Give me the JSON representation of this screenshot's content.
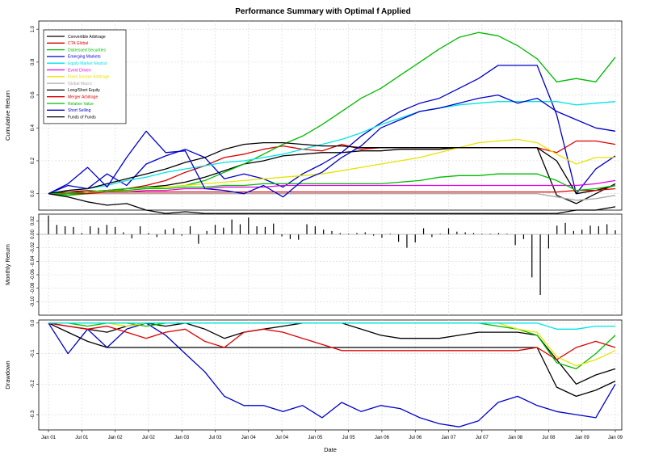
{
  "chart_data": {
    "type": "line",
    "title": "Performance Summary with Optimal f Applied",
    "xlabel": "Date",
    "x_ticks": [
      "Jan 01",
      "Jul 01",
      "Jan 02",
      "Jul 02",
      "Jan 03",
      "Jul 03",
      "Jan 04",
      "Jul 04",
      "Jan 05",
      "Jul 05",
      "Jan 06",
      "Jul 06",
      "Jan 07",
      "Jul 07",
      "Jan 08",
      "Jul 08",
      "Jan 09",
      "Jan 09"
    ],
    "legend_position": "top-left",
    "grid": true,
    "colors": {
      "Convertible Arbitrage": "#000000",
      "CTA Global": "#dd0000",
      "Distressed Securities": "#00bb00",
      "Emerging Markets": "#0000cc",
      "Equity Market Neutral": "#00e5e5",
      "Event Driven": "#e600e6",
      "Fixed Income Arbitrage": "#e5e500",
      "Global Macro": "#aaaaaa",
      "Long/Short Equity": "#000000",
      "Merger Arbitrage": "#dd0000",
      "Relative Value": "#00bb00",
      "Short Selling": "#0000cc",
      "Funds of Funds": "#000000"
    },
    "panels": [
      {
        "name": "cumulative",
        "ylabel": "Cumulative Return",
        "ylim": [
          -0.1,
          1.05
        ],
        "yticks": [
          "0.0",
          "0.2",
          "0.4",
          "0.6",
          "0.8",
          "1.0"
        ],
        "series": [
          {
            "name": "Convertible Arbitrage",
            "values": [
              0.0,
              0.01,
              0.01,
              0.02,
              0.03,
              0.04,
              0.05,
              0.07,
              0.1,
              0.14,
              0.18,
              0.2,
              0.23,
              0.24,
              0.25,
              0.25,
              0.26,
              0.26,
              0.27,
              0.27,
              0.27,
              0.28,
              0.28,
              0.28,
              0.28,
              0.28,
              -0.01,
              -0.06,
              0.0,
              0.06
            ]
          },
          {
            "name": "CTA Global",
            "values": [
              0.0,
              0.01,
              0.02,
              0.01,
              0.03,
              0.05,
              0.08,
              0.13,
              0.17,
              0.22,
              0.24,
              0.27,
              0.29,
              0.27,
              0.26,
              0.3,
              0.27,
              0.28,
              0.28,
              0.28,
              0.28,
              0.28,
              0.28,
              0.28,
              0.28,
              0.28,
              0.25,
              0.32,
              0.32,
              0.3
            ]
          },
          {
            "name": "Distressed Securities",
            "values": [
              0.0,
              -0.01,
              0.0,
              0.02,
              0.03,
              0.04,
              0.04,
              0.05,
              0.08,
              0.13,
              0.18,
              0.24,
              0.3,
              0.35,
              0.42,
              0.5,
              0.58,
              0.64,
              0.72,
              0.8,
              0.88,
              0.95,
              0.98,
              0.96,
              0.9,
              0.82,
              0.68,
              0.7,
              0.68,
              0.83
            ]
          },
          {
            "name": "Emerging Markets",
            "values": [
              0.0,
              0.05,
              0.03,
              0.12,
              0.05,
              0.18,
              0.23,
              0.27,
              0.22,
              0.09,
              0.12,
              0.09,
              0.04,
              0.12,
              0.18,
              0.25,
              0.35,
              0.43,
              0.5,
              0.55,
              0.58,
              0.64,
              0.7,
              0.78,
              0.78,
              0.78,
              0.48,
              0.0,
              0.15,
              0.23
            ]
          },
          {
            "name": "Equity Market Neutral",
            "values": [
              0.0,
              0.02,
              0.03,
              0.05,
              0.08,
              0.1,
              0.13,
              0.15,
              0.17,
              0.19,
              0.2,
              0.22,
              0.24,
              0.27,
              0.3,
              0.33,
              0.37,
              0.42,
              0.46,
              0.5,
              0.52,
              0.54,
              0.55,
              0.56,
              0.56,
              0.56,
              0.56,
              0.54,
              0.55,
              0.56
            ]
          },
          {
            "name": "Event Driven",
            "values": [
              0.0,
              0.0,
              0.01,
              0.01,
              0.01,
              0.02,
              0.02,
              0.03,
              0.03,
              0.04,
              0.04,
              0.04,
              0.05,
              0.05,
              0.05,
              0.05,
              0.05,
              0.05,
              0.05,
              0.05,
              0.05,
              0.05,
              0.05,
              0.05,
              0.05,
              0.05,
              0.05,
              0.05,
              0.06,
              0.08
            ]
          },
          {
            "name": "Fixed Income Arbitrage",
            "values": [
              0.0,
              0.0,
              0.01,
              0.01,
              0.02,
              0.03,
              0.04,
              0.05,
              0.06,
              0.07,
              0.08,
              0.09,
              0.1,
              0.11,
              0.12,
              0.14,
              0.16,
              0.18,
              0.2,
              0.22,
              0.25,
              0.28,
              0.31,
              0.32,
              0.33,
              0.31,
              0.24,
              0.18,
              0.22,
              0.22
            ]
          },
          {
            "name": "Global Macro",
            "values": [
              0.0,
              0.0,
              0.0,
              0.0,
              0.0,
              0.0,
              0.0,
              0.0,
              0.0,
              0.0,
              0.0,
              0.0,
              0.0,
              0.0,
              0.0,
              0.0,
              0.0,
              0.0,
              0.0,
              0.0,
              0.0,
              0.0,
              0.0,
              0.0,
              0.0,
              0.0,
              -0.02,
              -0.04,
              -0.03,
              -0.01
            ]
          },
          {
            "name": "Long/Short Equity",
            "values": [
              0.0,
              0.02,
              0.03,
              0.06,
              0.09,
              0.12,
              0.15,
              0.19,
              0.22,
              0.27,
              0.3,
              0.31,
              0.31,
              0.3,
              0.29,
              0.29,
              0.28,
              0.28,
              0.28,
              0.28,
              0.28,
              0.28,
              0.28,
              0.28,
              0.28,
              0.28,
              0.2,
              0.0,
              0.02,
              0.05
            ]
          },
          {
            "name": "Merger Arbitrage",
            "values": [
              0.0,
              0.0,
              0.0,
              0.01,
              0.01,
              0.01,
              0.01,
              0.01,
              0.01,
              0.01,
              0.01,
              0.01,
              0.01,
              0.01,
              0.01,
              0.01,
              0.01,
              0.01,
              0.01,
              0.01,
              0.01,
              0.01,
              0.01,
              0.01,
              0.01,
              0.01,
              0.01,
              0.02,
              0.02,
              0.03
            ]
          },
          {
            "name": "Relative Value",
            "values": [
              0.0,
              0.0,
              0.01,
              0.02,
              0.02,
              0.03,
              0.03,
              0.04,
              0.04,
              0.05,
              0.05,
              0.06,
              0.06,
              0.06,
              0.06,
              0.06,
              0.06,
              0.06,
              0.07,
              0.08,
              0.1,
              0.11,
              0.11,
              0.12,
              0.12,
              0.12,
              0.08,
              0.02,
              0.03,
              0.05
            ]
          },
          {
            "name": "Short Selling",
            "values": [
              0.0,
              0.06,
              0.16,
              0.04,
              0.22,
              0.38,
              0.25,
              0.26,
              0.03,
              0.02,
              0.0,
              0.05,
              -0.02,
              0.08,
              0.13,
              0.22,
              0.29,
              0.4,
              0.45,
              0.5,
              0.52,
              0.55,
              0.58,
              0.6,
              0.55,
              0.58,
              0.5,
              0.45,
              0.4,
              0.38
            ]
          },
          {
            "name": "Funds of Funds",
            "values": [
              0.0,
              -0.02,
              -0.05,
              -0.07,
              -0.06,
              -0.1,
              -0.12,
              -0.11,
              -0.12,
              -0.12,
              -0.12,
              -0.12,
              -0.12,
              -0.12,
              -0.12,
              -0.12,
              -0.12,
              -0.12,
              -0.12,
              -0.12,
              -0.12,
              -0.12,
              -0.12,
              -0.12,
              -0.12,
              -0.12,
              -0.12,
              -0.1,
              -0.1,
              -0.08
            ]
          }
        ]
      },
      {
        "name": "monthly",
        "ylabel": "Monthly Return",
        "type": "bar",
        "ylim": [
          -0.12,
          0.03
        ],
        "yticks": [
          "0.02",
          "0.00",
          "-0.02",
          "-0.04",
          "-0.06",
          "-0.08",
          "-0.10"
        ],
        "values": [
          0.028,
          0.014,
          0.012,
          0.011,
          0.002,
          0.012,
          0.01,
          0.014,
          0.011,
          0.003,
          -0.006,
          0.012,
          0.002,
          -0.004,
          0.007,
          0.009,
          -0.002,
          0.012,
          -0.014,
          0.005,
          0.014,
          0.01,
          0.022,
          0.015,
          0.025,
          0.012,
          0.011,
          0.016,
          -0.003,
          -0.007,
          -0.008,
          0.015,
          0.012,
          0.007,
          0.005,
          0.002,
          0.001,
          0.002,
          0.003,
          -0.002,
          -0.005,
          0.001,
          -0.011,
          -0.02,
          -0.012,
          0.009,
          -0.004,
          0.001,
          0.009,
          0.004,
          0.003,
          0.002,
          0.001,
          0.001,
          0.002,
          0.001,
          -0.016,
          -0.007,
          -0.064,
          -0.09,
          -0.021,
          0.013,
          0.017,
          0.005,
          0.007,
          0.013,
          0.012,
          0.015,
          0.006
        ]
      },
      {
        "name": "drawdown",
        "ylabel": "Drawdown",
        "ylim": [
          -0.35,
          0.01
        ],
        "yticks": [
          "0.0",
          "-0.1",
          "-0.2",
          "-0.3"
        ],
        "series": [
          {
            "name": "Short Selling",
            "values": [
              0.0,
              -0.1,
              -0.02,
              -0.08,
              -0.02,
              0.0,
              -0.04,
              -0.1,
              -0.16,
              -0.24,
              -0.27,
              -0.27,
              -0.29,
              -0.27,
              -0.31,
              -0.26,
              -0.29,
              -0.27,
              -0.28,
              -0.31,
              -0.33,
              -0.34,
              -0.32,
              -0.26,
              -0.24,
              -0.27,
              -0.29,
              -0.3,
              -0.31,
              -0.2
            ]
          },
          {
            "name": "Funds of Funds",
            "values": [
              0.0,
              -0.03,
              -0.06,
              -0.08,
              -0.08,
              -0.08,
              -0.08,
              -0.08,
              -0.08,
              -0.08,
              -0.08,
              -0.08,
              -0.08,
              -0.08,
              -0.08,
              -0.08,
              -0.08,
              -0.08,
              -0.08,
              -0.08,
              -0.08,
              -0.08,
              -0.08,
              -0.08,
              -0.08,
              -0.08,
              -0.21,
              -0.24,
              -0.22,
              -0.19
            ]
          },
          {
            "name": "Long/Short Equity",
            "values": [
              0.0,
              -0.01,
              -0.02,
              -0.03,
              -0.01,
              0.0,
              -0.01,
              0.0,
              -0.02,
              -0.05,
              -0.03,
              -0.02,
              -0.01,
              0.0,
              0.0,
              0.0,
              -0.02,
              -0.04,
              -0.05,
              -0.05,
              -0.05,
              -0.04,
              -0.03,
              -0.03,
              -0.03,
              -0.04,
              -0.12,
              -0.2,
              -0.17,
              -0.15
            ]
          },
          {
            "name": "CTA Global",
            "values": [
              0.0,
              -0.01,
              -0.02,
              -0.01,
              -0.03,
              -0.05,
              -0.03,
              -0.02,
              -0.06,
              -0.08,
              -0.03,
              -0.02,
              -0.03,
              -0.05,
              -0.07,
              -0.09,
              -0.09,
              -0.09,
              -0.09,
              -0.09,
              -0.09,
              -0.09,
              -0.09,
              -0.09,
              -0.09,
              -0.08,
              -0.12,
              -0.08,
              -0.06,
              -0.08
            ]
          },
          {
            "name": "Distressed Securities",
            "values": [
              0.0,
              0.0,
              -0.01,
              0.0,
              0.0,
              -0.01,
              0.0,
              0.0,
              0.0,
              0.0,
              0.0,
              0.0,
              0.0,
              0.0,
              0.0,
              0.0,
              0.0,
              0.0,
              0.0,
              0.0,
              0.0,
              0.0,
              0.0,
              -0.01,
              -0.02,
              -0.04,
              -0.13,
              -0.15,
              -0.1,
              -0.04
            ]
          },
          {
            "name": "Fixed Income Arbitrage",
            "values": [
              0.0,
              0.0,
              0.0,
              0.0,
              -0.01,
              0.0,
              0.0,
              0.0,
              0.0,
              0.0,
              0.0,
              0.0,
              0.0,
              0.0,
              0.0,
              0.0,
              0.0,
              0.0,
              0.0,
              0.0,
              0.0,
              0.0,
              0.0,
              0.0,
              -0.02,
              -0.03,
              -0.11,
              -0.14,
              -0.12,
              -0.09
            ]
          },
          {
            "name": "Equity Market Neutral",
            "values": [
              0.0,
              0.0,
              0.0,
              0.0,
              0.0,
              0.0,
              0.0,
              0.0,
              0.0,
              0.0,
              0.0,
              0.0,
              0.0,
              0.0,
              0.0,
              0.0,
              0.0,
              0.0,
              0.0,
              0.0,
              0.0,
              0.0,
              0.0,
              0.0,
              0.0,
              0.0,
              -0.02,
              -0.02,
              -0.01,
              -0.01
            ]
          }
        ]
      }
    ]
  }
}
